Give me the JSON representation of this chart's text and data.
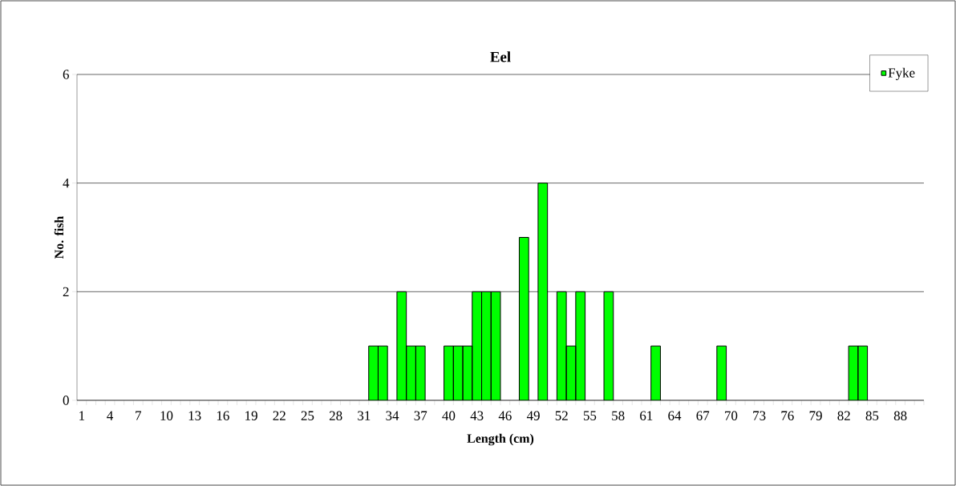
{
  "chart_data": {
    "type": "bar",
    "title": "Eel",
    "xlabel": "Length (cm)",
    "ylabel": "No. fish",
    "categories": [
      "1",
      null,
      null,
      "4",
      null,
      null,
      "7",
      null,
      null,
      "10",
      null,
      null,
      "13",
      null,
      null,
      "16",
      null,
      null,
      "19",
      null,
      null,
      "22",
      null,
      null,
      "25",
      null,
      null,
      "28",
      null,
      null,
      "31",
      null,
      null,
      "34",
      null,
      null,
      "37",
      null,
      null,
      "40",
      null,
      null,
      "43",
      null,
      null,
      "46",
      null,
      null,
      "49",
      null,
      null,
      "52",
      null,
      null,
      "55",
      null,
      null,
      "58",
      null,
      null,
      "61",
      null,
      null,
      "64",
      null,
      null,
      "67",
      null,
      null,
      "70",
      null,
      null,
      "73",
      null,
      null,
      "76",
      null,
      null,
      "79",
      null,
      null,
      "82",
      null,
      null,
      "85",
      null,
      null,
      "88",
      null,
      null
    ],
    "series": [
      {
        "name": "Fyke",
        "color": "#00ff00",
        "values": [
          0,
          0,
          0,
          0,
          0,
          0,
          0,
          0,
          0,
          0,
          0,
          0,
          0,
          0,
          0,
          0,
          0,
          0,
          0,
          0,
          0,
          0,
          0,
          0,
          0,
          0,
          0,
          0,
          0,
          0,
          0,
          1,
          1,
          0,
          2,
          1,
          1,
          0,
          0,
          1,
          1,
          1,
          2,
          2,
          2,
          0,
          0,
          3,
          0,
          4,
          0,
          2,
          1,
          2,
          0,
          0,
          2,
          0,
          0,
          0,
          0,
          1,
          0,
          0,
          0,
          0,
          0,
          0,
          1,
          0,
          0,
          0,
          0,
          0,
          0,
          0,
          0,
          0,
          0,
          0,
          0,
          0,
          1,
          1,
          0,
          0,
          0,
          0,
          0,
          0
        ]
      }
    ],
    "ylim": [
      0,
      6
    ],
    "yticks": [
      0,
      2,
      4,
      6
    ],
    "grid": "y",
    "legend": "top right"
  }
}
